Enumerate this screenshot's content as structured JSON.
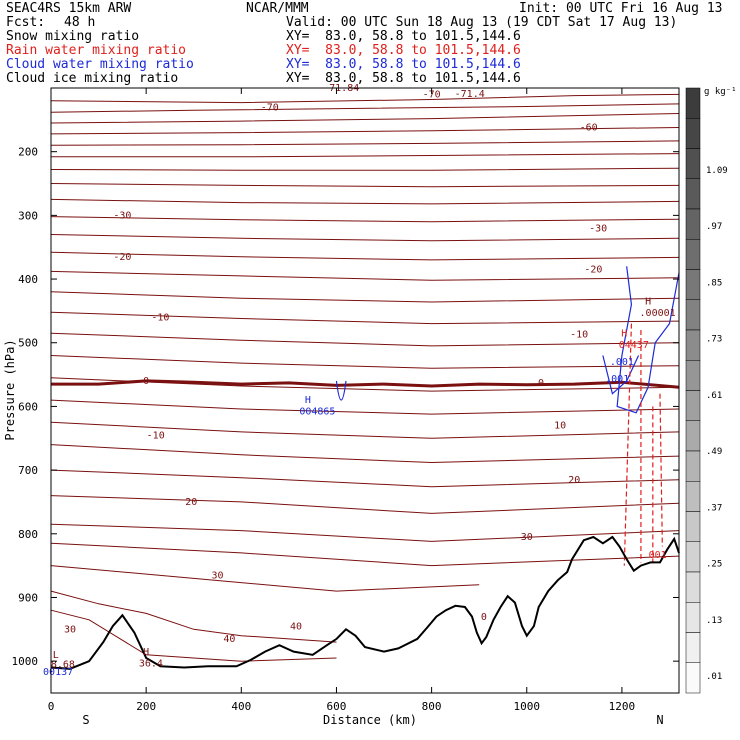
{
  "header": {
    "model": "SEAC4RS 15km ARW",
    "center": "NCAR/MMM",
    "init": "Init: 00 UTC Fri 16 Aug 13",
    "fcst_label": "Fcst:",
    "fcst_value": "48 h",
    "valid": "Valid: 00 UTC Sun 18 Aug 13 (19 CDT Sat 17 Aug 13)"
  },
  "fields": [
    {
      "name": "Snow mixing ratio",
      "xy": "XY=  83.0, 58.8 to 101.5,144.6",
      "color": "#000000"
    },
    {
      "name": "Rain water mixing ratio",
      "xy": "XY=  83.0, 58.8 to 101.5,144.6",
      "color": "#e0201c"
    },
    {
      "name": "Cloud water mixing ratio",
      "xy": "XY=  83.0, 58.8 to 101.5,144.6",
      "color": "#1c2ad8"
    },
    {
      "name": "Cloud ice mixing ratio",
      "xy": "XY=  83.0, 58.8 to 101.5,144.6",
      "color": "#000000"
    }
  ],
  "colors": {
    "temperature": "#7a1010",
    "freezing": "#7a1010",
    "terrain": "#000000",
    "rain": "#e0201c",
    "cloud_water": "#1c2ad8"
  },
  "chart_data": {
    "type": "cross-section",
    "xlabel": "Distance (km)",
    "ylabel": "Pressure (hPa)",
    "xlim": [
      0,
      1320
    ],
    "ylim": [
      1050,
      100
    ],
    "x_ticks": [
      0,
      200,
      400,
      600,
      800,
      1000,
      1200
    ],
    "y_ticks": [
      200,
      300,
      400,
      500,
      600,
      700,
      800,
      900,
      1000
    ],
    "x_ends": {
      "left": "S",
      "right": "N"
    },
    "grid": false,
    "terrain_pressure": [
      [
        0,
        1010
      ],
      [
        40,
        1012
      ],
      [
        80,
        1000
      ],
      [
        110,
        970
      ],
      [
        130,
        945
      ],
      [
        150,
        928
      ],
      [
        175,
        955
      ],
      [
        200,
        995
      ],
      [
        230,
        1008
      ],
      [
        280,
        1010
      ],
      [
        330,
        1008
      ],
      [
        390,
        1008
      ],
      [
        420,
        998
      ],
      [
        450,
        985
      ],
      [
        480,
        975
      ],
      [
        510,
        985
      ],
      [
        550,
        990
      ],
      [
        580,
        975
      ],
      [
        600,
        965
      ],
      [
        620,
        950
      ],
      [
        640,
        960
      ],
      [
        660,
        978
      ],
      [
        700,
        985
      ],
      [
        730,
        980
      ],
      [
        770,
        965
      ],
      [
        790,
        948
      ],
      [
        810,
        930
      ],
      [
        830,
        920
      ],
      [
        850,
        913
      ],
      [
        870,
        915
      ],
      [
        885,
        930
      ],
      [
        895,
        955
      ],
      [
        905,
        972
      ],
      [
        915,
        962
      ],
      [
        930,
        935
      ],
      [
        945,
        915
      ],
      [
        960,
        898
      ],
      [
        975,
        908
      ],
      [
        990,
        945
      ],
      [
        1000,
        960
      ],
      [
        1015,
        945
      ],
      [
        1025,
        915
      ],
      [
        1045,
        890
      ],
      [
        1065,
        873
      ],
      [
        1085,
        860
      ],
      [
        1095,
        840
      ],
      [
        1120,
        810
      ],
      [
        1140,
        805
      ],
      [
        1160,
        815
      ],
      [
        1180,
        805
      ],
      [
        1195,
        820
      ],
      [
        1210,
        840
      ],
      [
        1225,
        858
      ],
      [
        1240,
        850
      ],
      [
        1260,
        845
      ],
      [
        1280,
        845
      ],
      [
        1295,
        825
      ],
      [
        1310,
        808
      ],
      [
        1320,
        830
      ]
    ],
    "temperature_contours": [
      {
        "label": "-71.84",
        "points": [
          [
            0,
            120
          ],
          [
            400,
            123
          ],
          [
            800,
            118
          ],
          [
            1100,
            112
          ],
          [
            1320,
            110
          ]
        ]
      },
      {
        "label": "-70",
        "points": [
          [
            0,
            138
          ],
          [
            300,
            135
          ],
          [
            650,
            132
          ],
          [
            1000,
            129
          ],
          [
            1320,
            125
          ]
        ]
      },
      {
        "label": "-70",
        "points": [
          [
            0,
            155
          ],
          [
            400,
            152
          ],
          [
            800,
            148
          ],
          [
            1320,
            140
          ]
        ]
      },
      {
        "label": "-60",
        "points": [
          [
            0,
            172
          ],
          [
            400,
            170
          ],
          [
            800,
            167
          ],
          [
            1320,
            162
          ]
        ]
      },
      {
        "label": "",
        "points": [
          [
            0,
            190
          ],
          [
            400,
            189
          ],
          [
            800,
            187
          ],
          [
            1320,
            183
          ]
        ]
      },
      {
        "label": "",
        "points": [
          [
            0,
            208
          ],
          [
            400,
            208
          ],
          [
            800,
            206
          ],
          [
            1320,
            203
          ]
        ]
      },
      {
        "label": "",
        "points": [
          [
            0,
            228
          ],
          [
            400,
            229
          ],
          [
            800,
            229
          ],
          [
            1320,
            226
          ]
        ]
      },
      {
        "label": "-30",
        "points": [
          [
            0,
            250
          ],
          [
            400,
            253
          ],
          [
            800,
            255
          ],
          [
            1320,
            253
          ]
        ]
      },
      {
        "label": "-30",
        "points": [
          [
            0,
            275
          ],
          [
            400,
            280
          ],
          [
            800,
            282
          ],
          [
            1320,
            278
          ]
        ]
      },
      {
        "label": "-20",
        "points": [
          [
            0,
            302
          ],
          [
            400,
            307
          ],
          [
            800,
            310
          ],
          [
            1320,
            306
          ]
        ]
      },
      {
        "label": "-20",
        "points": [
          [
            0,
            330
          ],
          [
            400,
            336
          ],
          [
            800,
            340
          ],
          [
            1320,
            336
          ]
        ]
      },
      {
        "label": "",
        "points": [
          [
            0,
            358
          ],
          [
            400,
            365
          ],
          [
            800,
            370
          ],
          [
            1320,
            366
          ]
        ]
      },
      {
        "label": "-10",
        "points": [
          [
            0,
            388
          ],
          [
            400,
            395
          ],
          [
            800,
            402
          ],
          [
            1320,
            398
          ]
        ]
      },
      {
        "label": "-10",
        "points": [
          [
            0,
            420
          ],
          [
            400,
            430
          ],
          [
            800,
            436
          ],
          [
            1320,
            430
          ]
        ]
      },
      {
        "label": "",
        "points": [
          [
            0,
            452
          ],
          [
            400,
            462
          ],
          [
            800,
            470
          ],
          [
            1320,
            466
          ]
        ]
      },
      {
        "label": "",
        "points": [
          [
            0,
            485
          ],
          [
            400,
            496
          ],
          [
            800,
            505
          ],
          [
            1320,
            500
          ]
        ]
      },
      {
        "label": "0",
        "points": [
          [
            0,
            520
          ],
          [
            400,
            532
          ],
          [
            800,
            540
          ],
          [
            1320,
            536
          ]
        ]
      },
      {
        "label": "10",
        "points": [
          [
            0,
            555
          ],
          [
            400,
            568
          ],
          [
            800,
            576
          ],
          [
            1320,
            570
          ]
        ]
      },
      {
        "label": "10",
        "points": [
          [
            0,
            590
          ],
          [
            400,
            604
          ],
          [
            800,
            612
          ],
          [
            1320,
            604
          ]
        ]
      },
      {
        "label": "20",
        "points": [
          [
            0,
            625
          ],
          [
            400,
            640
          ],
          [
            800,
            650
          ],
          [
            1320,
            640
          ]
        ]
      },
      {
        "label": "20",
        "points": [
          [
            0,
            660
          ],
          [
            400,
            676
          ],
          [
            800,
            688
          ],
          [
            1320,
            678
          ]
        ]
      },
      {
        "label": "30",
        "points": [
          [
            0,
            700
          ],
          [
            400,
            712
          ],
          [
            800,
            726
          ],
          [
            1320,
            715
          ]
        ]
      },
      {
        "label": "30",
        "points": [
          [
            0,
            740
          ],
          [
            400,
            750
          ],
          [
            800,
            768
          ],
          [
            1320,
            752
          ]
        ]
      },
      {
        "label": "40",
        "points": [
          [
            0,
            785
          ],
          [
            400,
            795
          ],
          [
            800,
            812
          ],
          [
            1320,
            795
          ]
        ]
      },
      {
        "label": "",
        "points": [
          [
            0,
            815
          ],
          [
            400,
            830
          ],
          [
            800,
            850
          ],
          [
            1320,
            835
          ]
        ]
      },
      {
        "label": "",
        "points": [
          [
            0,
            850
          ],
          [
            300,
            870
          ],
          [
            600,
            890
          ],
          [
            900,
            880
          ]
        ]
      },
      {
        "label": "30",
        "points": [
          [
            0,
            890
          ],
          [
            100,
            910
          ],
          [
            200,
            925
          ],
          [
            300,
            950
          ],
          [
            400,
            960
          ],
          [
            500,
            965
          ],
          [
            600,
            970
          ]
        ]
      },
      {
        "label": "40",
        "points": [
          [
            0,
            920
          ],
          [
            80,
            935
          ],
          [
            200,
            990
          ],
          [
            400,
            1000
          ],
          [
            600,
            995
          ]
        ]
      }
    ],
    "freezing_level": [
      [
        0,
        565
      ],
      [
        100,
        565
      ],
      [
        200,
        560
      ],
      [
        300,
        562
      ],
      [
        400,
        565
      ],
      [
        500,
        563
      ],
      [
        600,
        567
      ],
      [
        700,
        565
      ],
      [
        800,
        568
      ],
      [
        900,
        565
      ],
      [
        1000,
        566
      ],
      [
        1100,
        565
      ],
      [
        1200,
        562
      ],
      [
        1320,
        570
      ]
    ],
    "labels": [
      {
        "text": "-70",
        "x": 460,
        "p": 135,
        "color": "temperature"
      },
      {
        "text": "-71.84",
        "x": 610,
        "p": 105,
        "color": "temperature"
      },
      {
        "text": "-70",
        "x": 800,
        "p": 115,
        "color": "temperature"
      },
      {
        "text": "-71.4",
        "x": 880,
        "p": 114,
        "color": "temperature"
      },
      {
        "text": "-60",
        "x": 1130,
        "p": 167,
        "color": "temperature"
      },
      {
        "text": "-30",
        "x": 150,
        "p": 305,
        "color": "temperature"
      },
      {
        "text": "-30",
        "x": 1150,
        "p": 325,
        "color": "temperature"
      },
      {
        "text": "-20",
        "x": 150,
        "p": 370,
        "color": "temperature"
      },
      {
        "text": "-20",
        "x": 1140,
        "p": 390,
        "color": "temperature"
      },
      {
        "text": "-10",
        "x": 230,
        "p": 465,
        "color": "temperature"
      },
      {
        "text": "-10",
        "x": 1110,
        "p": 492,
        "color": "temperature"
      },
      {
        "text": "0",
        "x": 200,
        "p": 565,
        "color": "temperature"
      },
      {
        "text": "0",
        "x": 1030,
        "p": 568,
        "color": "temperature"
      },
      {
        "text": "-10",
        "x": 220,
        "p": 650,
        "color": "temperature"
      },
      {
        "text": "10",
        "x": 1070,
        "p": 635,
        "color": "temperature"
      },
      {
        "text": "20",
        "x": 295,
        "p": 755,
        "color": "temperature"
      },
      {
        "text": "20",
        "x": 1100,
        "p": 720,
        "color": "temperature"
      },
      {
        "text": "30",
        "x": 350,
        "p": 870,
        "color": "temperature"
      },
      {
        "text": "30",
        "x": 1000,
        "p": 810,
        "color": "temperature"
      },
      {
        "text": "30",
        "x": 40,
        "p": 955,
        "color": "temperature"
      },
      {
        "text": "40",
        "x": 375,
        "p": 970,
        "color": "temperature"
      },
      {
        "text": "40",
        "x": 515,
        "p": 950,
        "color": "temperature"
      },
      {
        "text": "H",
        "x": 540,
        "p": 595,
        "color": "cloud_water"
      },
      {
        "text": "004865",
        "x": 560,
        "p": 613,
        "color": "cloud_water"
      },
      {
        "text": "H",
        "x": 200,
        "p": 990,
        "color": "temperature"
      },
      {
        "text": "36.4",
        "x": 210,
        "p": 1008,
        "color": "temperature"
      },
      {
        "text": "L",
        "x": 10,
        "p": 995,
        "color": "temperature"
      },
      {
        "text": "8.68",
        "x": 25,
        "p": 1010,
        "color": "temperature"
      },
      {
        "text": "00137",
        "x": 15,
        "p": 1022,
        "color": "cloud_water"
      },
      {
        "text": "H",
        "x": 1255,
        "p": 440,
        "color": "temperature"
      },
      {
        "text": ".00001",
        "x": 1275,
        "p": 458,
        "color": "temperature"
      },
      {
        "text": "H",
        "x": 1205,
        "p": 490,
        "color": "rain"
      },
      {
        "text": "04437",
        "x": 1225,
        "p": 508,
        "color": "rain"
      },
      {
        "text": ".001",
        "x": 1200,
        "p": 535,
        "color": "cloud_water"
      },
      {
        "text": ".001",
        "x": 1190,
        "p": 562,
        "color": "cloud_water"
      },
      {
        "text": "001",
        "x": 1275,
        "p": 838,
        "color": "rain"
      },
      {
        "text": "0",
        "x": 910,
        "p": 935,
        "color": "temperature"
      }
    ],
    "colorbar": {
      "unit": "g kg⁻¹",
      "ticks": [
        "1.09",
        ".97",
        ".85",
        ".73",
        ".61",
        ".49",
        ".37",
        ".25",
        ".13",
        ".01"
      ]
    }
  }
}
